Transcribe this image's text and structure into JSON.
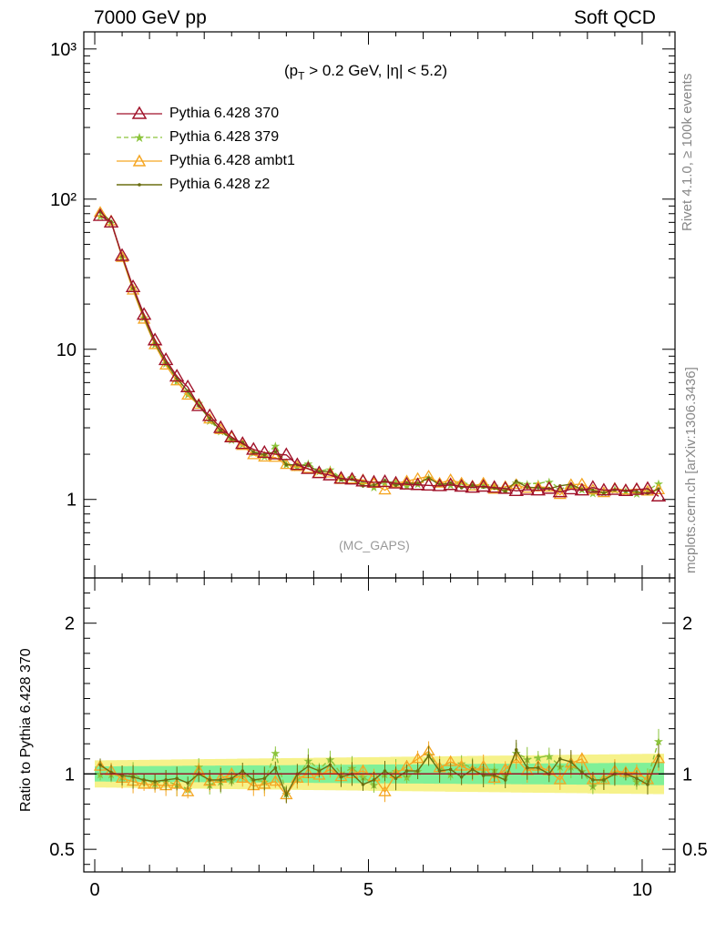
{
  "header": {
    "left": "7000 GeV pp",
    "right": "Soft QCD"
  },
  "side_text": {
    "rivet": "Rivet 4.1.0, ≥ 100k events",
    "mcplots": "mcplots.cern.ch [arXiv:1306.3436]"
  },
  "condition": {
    "pre": "(p",
    "sub": "T",
    "post": " > 0.2 GeV, |η| < 5.2)"
  },
  "analysis_label": "(MC_GAPS)",
  "ratio_ylabel": "Ratio to Pythia 6.428 370",
  "colors": {
    "p370": "#a0122a",
    "p379": "#8cc43c",
    "ambt1": "#f5a623",
    "z2": "#6b6e10",
    "band_inner": "#80f098",
    "band_outer": "#f6f28a"
  },
  "chart_data": {
    "type": "line",
    "upper": {
      "yscale": "log",
      "ylim": [
        0.3,
        1300
      ],
      "ytick_labels": [
        "1",
        "10",
        "10²",
        "10³"
      ],
      "ytick_values": [
        1,
        10,
        100,
        1000
      ]
    },
    "lower": {
      "ylim": [
        0.35,
        2.3
      ],
      "ytick_labels": [
        "0.5",
        "1",
        "2"
      ],
      "ytick_values": [
        0.5,
        1,
        2
      ]
    },
    "xlim": [
      -0.2,
      10.6
    ],
    "xtick_labels": [
      "0",
      "5",
      "10"
    ],
    "xtick_values": [
      0,
      5,
      10
    ],
    "x": [
      0.1,
      0.3,
      0.5,
      0.7,
      0.9,
      1.1,
      1.3,
      1.5,
      1.7,
      1.9,
      2.1,
      2.3,
      2.5,
      2.7,
      2.9,
      3.1,
      3.3,
      3.5,
      3.7,
      3.9,
      4.1,
      4.3,
      4.5,
      4.7,
      4.9,
      5.1,
      5.3,
      5.5,
      5.7,
      5.9,
      6.1,
      6.3,
      6.5,
      6.7,
      6.9,
      7.1,
      7.3,
      7.5,
      7.7,
      7.9,
      8.1,
      8.3,
      8.5,
      8.7,
      8.9,
      9.1,
      9.3,
      9.5,
      9.7,
      9.9,
      10.1,
      10.3
    ],
    "series": [
      {
        "name": "Pythia 6.428 370",
        "values": [
          77.5,
          70,
          42,
          26,
          17,
          11.5,
          8.5,
          6.6,
          5.6,
          4.2,
          3.6,
          3,
          2.6,
          2.35,
          2.15,
          2.05,
          2,
          1.98,
          1.7,
          1.6,
          1.5,
          1.45,
          1.38,
          1.36,
          1.32,
          1.3,
          1.31,
          1.28,
          1.26,
          1.25,
          1.24,
          1.23,
          1.25,
          1.22,
          1.2,
          1.22,
          1.2,
          1.18,
          1.14,
          1.16,
          1.15,
          1.18,
          1.12,
          1.17,
          1.15,
          1.2,
          1.15,
          1.16,
          1.14,
          1.16,
          1.18,
          1.05
        ],
        "ratio": [
          1.0,
          1.0,
          1.0,
          1.0,
          1.0,
          1.0,
          1.0,
          1.0,
          1.0,
          1.0,
          1.0,
          1.0,
          1.0,
          1.0,
          1.0,
          1.0,
          1.0,
          1.0,
          1.0,
          1.0,
          1.0,
          1.0,
          1.0,
          1.0,
          1.0,
          1.0,
          1.0,
          1.0,
          1.0,
          1.0,
          1.0,
          1.0,
          1.0,
          1.0,
          1.0,
          1.0,
          1.0,
          1.0,
          1.0,
          1.0,
          1.0,
          1.0,
          1.0,
          1.0,
          1.0,
          1.0,
          1.0,
          1.0,
          1.0,
          1.0,
          1.0,
          1.0
        ]
      },
      {
        "name": "Pythia 6.428 379",
        "ratio": [
          1.0,
          1.0,
          0.98,
          1.0,
          0.96,
          0.94,
          0.95,
          0.93,
          0.9,
          1.05,
          0.93,
          0.95,
          0.96,
          1.0,
          0.96,
          0.95,
          1.14,
          0.87,
          0.97,
          1.09,
          1.03,
          1.1,
          1.0,
          1.04,
          0.98,
          0.93,
          1.0,
          1.02,
          0.98,
          1.02,
          1.13,
          1.04,
          1.0,
          1.07,
          1.04,
          1.03,
          1.03,
          0.99,
          1.14,
          1.1,
          1.11,
          1.12,
          1.05,
          1.05,
          1.02,
          0.92,
          0.97,
          1.01,
          1.0,
          0.95,
          0.97,
          1.22
        ]
      },
      {
        "name": "Pythia 6.428 ambt1",
        "ratio": [
          1.05,
          1.02,
          0.97,
          0.95,
          0.93,
          0.93,
          0.92,
          0.93,
          0.88,
          1.02,
          0.95,
          0.97,
          1.0,
          0.97,
          0.92,
          0.93,
          0.95,
          0.86,
          0.97,
          1.0,
          0.99,
          1.03,
          0.98,
          1.0,
          1.02,
          0.98,
          0.88,
          1.0,
          1.05,
          1.1,
          1.15,
          1.04,
          1.08,
          1.05,
          1.02,
          1.05,
          0.97,
          1.03,
          1.1,
          1.02,
          1.05,
          1.02,
          0.96,
          1.07,
          1.1,
          0.96,
          0.96,
          1.02,
          1.01,
          1.01,
          0.96,
          1.1
        ]
      },
      {
        "name": "Pythia 6.428 z2",
        "ratio": [
          1.06,
          1.01,
          0.99,
          0.98,
          0.96,
          0.95,
          0.96,
          0.97,
          0.94,
          1.0,
          0.96,
          0.96,
          0.97,
          1.02,
          0.96,
          0.97,
          1.04,
          0.86,
          1.0,
          1.05,
          1.02,
          1.06,
          0.98,
          1.0,
          0.93,
          0.96,
          1.02,
          0.97,
          1.02,
          1.02,
          1.12,
          1.02,
          1.03,
          0.98,
          1.03,
          0.99,
          0.99,
          0.96,
          1.16,
          1.04,
          1.04,
          1.0,
          1.1,
          1.08,
          1.01,
          0.96,
          0.96,
          1.0,
          1.0,
          0.97,
          0.93,
          1.12
        ]
      }
    ],
    "band_inner": 0.05,
    "band_outer": 0.09
  },
  "legend": [
    {
      "label": "Pythia 6.428 370"
    },
    {
      "label": "Pythia 6.428 379"
    },
    {
      "label": "Pythia 6.428 ambt1"
    },
    {
      "label": "Pythia 6.428 z2"
    }
  ]
}
